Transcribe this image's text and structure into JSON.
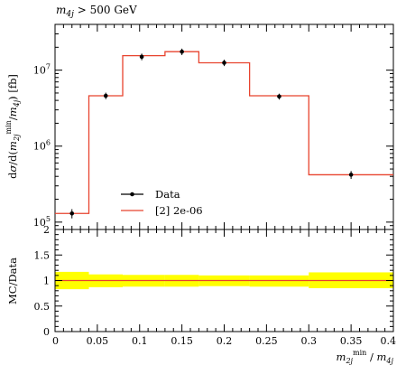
{
  "chart_data": [
    {
      "type": "line",
      "title": "m_4j > 500 GeV",
      "title_text": "m",
      "title_sub": "4j",
      "title_rest": " > 500 GeV",
      "ylabel": "dσ/d(m_2j^min/m_4j) [fb]",
      "yscale": "log",
      "ylim": [
        80000,
        40000000
      ],
      "xlim": [
        0,
        0.4
      ],
      "y_ticks": [
        {
          "value": 100000,
          "base": "10",
          "exp": "5"
        },
        {
          "value": 1000000,
          "base": "10",
          "exp": "6"
        },
        {
          "value": 10000000,
          "base": "10",
          "exp": "7"
        }
      ],
      "legend_position": "lower-left",
      "series": [
        {
          "name": "Data",
          "color": "#000000",
          "style": "points-with-errors",
          "x": [
            0.02,
            0.06,
            0.1025,
            0.15,
            0.2,
            0.265,
            0.35
          ],
          "y": [
            130000,
            4600000,
            15000000,
            17500000,
            12500000,
            4500000,
            420000
          ],
          "y_err_low": [
            18000,
            450000,
            1500000,
            1700000,
            1200000,
            400000,
            50000
          ],
          "y_err_high": [
            18000,
            450000,
            1500000,
            1700000,
            1200000,
            400000,
            50000
          ]
        },
        {
          "name": "[2] 2e-06",
          "color": "#e8432e",
          "style": "histogram-step",
          "bin_edges": [
            0,
            0.04,
            0.08,
            0.13,
            0.17,
            0.23,
            0.3,
            0.4
          ],
          "y": [
            130000,
            4600000,
            15500000,
            17500000,
            12500000,
            4600000,
            420000
          ]
        }
      ]
    },
    {
      "type": "line",
      "ylabel": "MC/Data",
      "xlabel": "m_2j^min / m_4j",
      "ylim": [
        0,
        2
      ],
      "xlim": [
        0,
        0.4
      ],
      "y_ticks": [
        "0",
        "0.5",
        "1",
        "1.5",
        "2"
      ],
      "x_ticks": [
        "0",
        "0.05",
        "0.1",
        "0.15",
        "0.2",
        "0.25",
        "0.3",
        "0.35",
        "0.4"
      ],
      "x_tick_values": [
        0,
        0.05,
        0.1,
        0.15,
        0.2,
        0.25,
        0.3,
        0.35,
        0.4
      ],
      "band_color": "#ffff00",
      "line_color": "#e8432e",
      "bin_edges": [
        0,
        0.04,
        0.08,
        0.13,
        0.17,
        0.23,
        0.3,
        0.4
      ],
      "band_low": [
        0.83,
        0.87,
        0.88,
        0.88,
        0.89,
        0.88,
        0.85
      ],
      "band_high": [
        1.17,
        1.12,
        1.11,
        1.11,
        1.1,
        1.1,
        1.16
      ],
      "ratio": [
        1.0,
        1.0,
        1.0,
        1.0,
        1.0,
        1.0,
        1.0
      ]
    }
  ]
}
